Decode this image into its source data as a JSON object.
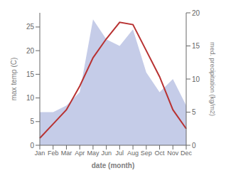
{
  "chart_data": {
    "type": "line",
    "categories": [
      "Jan",
      "Feb",
      "Mar",
      "Apr",
      "May",
      "Jun",
      "Jul",
      "Aug",
      "Sep",
      "Oct",
      "Nov",
      "Dec"
    ],
    "series": [
      {
        "type": "area",
        "axis": "y2",
        "color": "#c5cce8",
        "values": [
          5.0,
          5.0,
          6.0,
          8.0,
          19.0,
          16.0,
          15.0,
          17.5,
          11.0,
          8.0,
          10.0,
          6.0
        ]
      },
      {
        "type": "line",
        "color": "#b83232",
        "values": [
          1.5,
          4.5,
          7.5,
          12.5,
          18.5,
          22.5,
          26.0,
          25.5,
          20.0,
          14.5,
          7.5,
          3.5
        ]
      }
    ],
    "xlabel": "date (month)",
    "ylabel": "max temp (C)",
    "y2label": "med. precipitation (kg/m2)",
    "ylim": [
      0,
      28
    ],
    "yticks": [
      0,
      5,
      10,
      15,
      20,
      25
    ],
    "y2lim": [
      0,
      20
    ],
    "y2ticks": [
      0,
      5,
      10,
      15,
      20
    ],
    "grid": false
  }
}
